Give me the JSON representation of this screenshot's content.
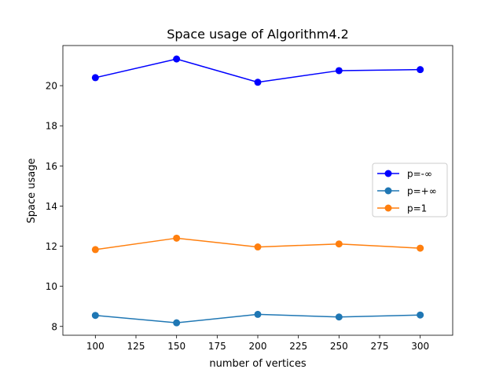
{
  "chart_data": {
    "type": "line",
    "title": "Space usage of Algorithm4.2",
    "xlabel": "number of vertices",
    "ylabel": "Space usage",
    "x": [
      100,
      150,
      200,
      250,
      300
    ],
    "xlim": [
      80,
      320
    ],
    "ylim": [
      7.56,
      22.0
    ],
    "xticks": [
      100,
      125,
      150,
      175,
      200,
      225,
      250,
      275,
      300
    ],
    "yticks": [
      8,
      10,
      12,
      14,
      16,
      18,
      20
    ],
    "grid": false,
    "legend_position": "center-right",
    "series": [
      {
        "name": "p=-∞",
        "color": "#0000ff",
        "values": [
          20.4,
          21.33,
          20.17,
          20.75,
          20.8
        ]
      },
      {
        "name": "p=+∞",
        "color": "#1f77b4",
        "values": [
          8.55,
          8.18,
          8.6,
          8.47,
          8.57
        ]
      },
      {
        "name": "p=1",
        "color": "#ff7f0e",
        "values": [
          11.83,
          12.4,
          11.96,
          12.11,
          11.9
        ]
      }
    ]
  }
}
